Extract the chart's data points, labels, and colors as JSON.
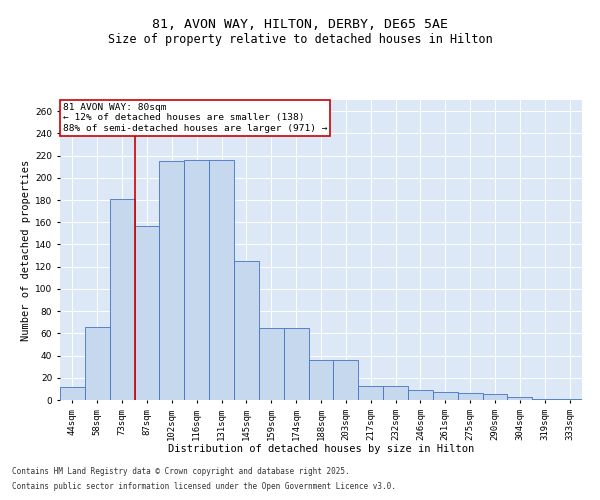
{
  "title1": "81, AVON WAY, HILTON, DERBY, DE65 5AE",
  "title2": "Size of property relative to detached houses in Hilton",
  "xlabel": "Distribution of detached houses by size in Hilton",
  "ylabel": "Number of detached properties",
  "categories": [
    "44sqm",
    "58sqm",
    "73sqm",
    "87sqm",
    "102sqm",
    "116sqm",
    "131sqm",
    "145sqm",
    "159sqm",
    "174sqm",
    "188sqm",
    "203sqm",
    "217sqm",
    "232sqm",
    "246sqm",
    "261sqm",
    "275sqm",
    "290sqm",
    "304sqm",
    "319sqm",
    "333sqm"
  ],
  "values": [
    12,
    66,
    181,
    157,
    215,
    216,
    216,
    125,
    65,
    65,
    36,
    36,
    13,
    13,
    9,
    7,
    6,
    5,
    3,
    1,
    1
  ],
  "bar_color": "#c5d8ed",
  "bar_edge_color": "#4472c4",
  "vline_x": 2.5,
  "vline_color": "#cc0000",
  "annotation_text": "81 AVON WAY: 80sqm\n← 12% of detached houses are smaller (138)\n88% of semi-detached houses are larger (971) →",
  "annotation_box_color": "#ffffff",
  "annotation_box_edge": "#cc0000",
  "ylim": [
    0,
    270
  ],
  "yticks": [
    0,
    20,
    40,
    60,
    80,
    100,
    120,
    140,
    160,
    180,
    200,
    220,
    240,
    260
  ],
  "background_color": "#dce8f5",
  "footer1": "Contains HM Land Registry data © Crown copyright and database right 2025.",
  "footer2": "Contains public sector information licensed under the Open Government Licence v3.0.",
  "title_fontsize": 9.5,
  "subtitle_fontsize": 8.5,
  "axis_label_fontsize": 7.5,
  "tick_fontsize": 6.5,
  "annotation_fontsize": 6.8,
  "footer_fontsize": 5.5
}
